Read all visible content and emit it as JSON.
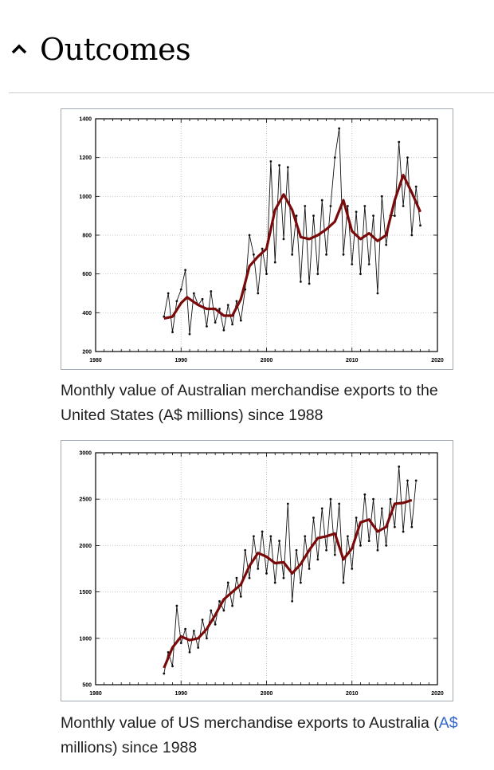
{
  "section": {
    "title": "Outcomes",
    "toggle_icon": "chevron-up-icon"
  },
  "colors": {
    "raw": "#111111",
    "trend": "#7a0a0a",
    "grid": "#c8c8c8",
    "link": "#3366cc"
  },
  "figures": [
    {
      "caption": "Monthly value of Australian merchandise exports to the United States (A$ millions) since 1988"
    },
    {
      "caption_before": "Monthly value of US merchandise exports to Australia (",
      "caption_link": "A$",
      "caption_after": " millions) since 1988"
    }
  ],
  "chart_data": [
    {
      "type": "line",
      "xlim": [
        1980,
        2020
      ],
      "ylim": [
        200,
        1400
      ],
      "xticks": [
        "1980",
        "1990",
        "2000",
        "2010",
        "2020"
      ],
      "yticks": [
        "200",
        "400",
        "600",
        "800",
        "1000",
        "1200",
        "1400"
      ],
      "grid": true,
      "series": [
        {
          "kind": "monthly",
          "x": [
            1988,
            1988.5,
            1989,
            1989.5,
            1990,
            1990.5,
            1991,
            1991.5,
            1992,
            1992.5,
            1993,
            1993.5,
            1994,
            1994.5,
            1995,
            1995.5,
            1996,
            1996.5,
            1997,
            1997.5,
            1998,
            1998.5,
            1999,
            1999.5,
            2000,
            2000.5,
            2001,
            2001.5,
            2002,
            2002.5,
            2003,
            2003.5,
            2004,
            2004.5,
            2005,
            2005.5,
            2006,
            2006.5,
            2007,
            2007.5,
            2008,
            2008.5,
            2009,
            2009.5,
            2010,
            2010.5,
            2011,
            2011.5,
            2012,
            2012.5,
            2013,
            2013.5,
            2014,
            2014.5,
            2015,
            2015.5,
            2016,
            2016.5,
            2017,
            2017.5,
            2018
          ],
          "y": [
            380,
            500,
            300,
            460,
            520,
            620,
            290,
            500,
            440,
            470,
            330,
            510,
            350,
            420,
            310,
            440,
            340,
            460,
            360,
            520,
            800,
            700,
            500,
            730,
            600,
            1180,
            660,
            1160,
            780,
            1150,
            700,
            900,
            560,
            950,
            550,
            900,
            600,
            980,
            700,
            950,
            1200,
            1350,
            700,
            950,
            650,
            920,
            600,
            950,
            650,
            900,
            500,
            1000,
            750,
            900,
            900,
            1280,
            950,
            1200,
            800,
            1050,
            850
          ]
        },
        {
          "kind": "trend",
          "x": [
            1988,
            1989,
            1990,
            1990.7,
            1992,
            1993,
            1994,
            1995,
            1996,
            1997,
            1998,
            1999,
            2000,
            2001,
            2002,
            2003,
            2004,
            2005,
            2006,
            2007,
            2008,
            2009,
            2010,
            2011,
            2012,
            2013,
            2014,
            2015,
            2016,
            2017,
            2018
          ],
          "y": [
            370,
            380,
            450,
            480,
            440,
            420,
            420,
            385,
            385,
            470,
            640,
            690,
            730,
            930,
            1010,
            930,
            790,
            780,
            800,
            830,
            870,
            980,
            820,
            780,
            810,
            770,
            800,
            980,
            1110,
            1020,
            920
          ]
        }
      ]
    },
    {
      "type": "line",
      "xlim": [
        1980,
        2020
      ],
      "ylim": [
        500,
        3000
      ],
      "xticks": [
        "1980",
        "1990",
        "2000",
        "2010",
        "2020"
      ],
      "yticks": [
        "500",
        "1000",
        "1500",
        "2000",
        "2500",
        "3000"
      ],
      "grid": true,
      "series": [
        {
          "kind": "monthly",
          "x": [
            1988,
            1988.5,
            1989,
            1989.5,
            1990,
            1990.5,
            1991,
            1991.5,
            1992,
            1992.5,
            1993,
            1993.5,
            1994,
            1994.5,
            1995,
            1995.5,
            1996,
            1996.5,
            1997,
            1997.5,
            1998,
            1998.5,
            1999,
            1999.5,
            2000,
            2000.5,
            2001,
            2001.5,
            2002,
            2002.5,
            2003,
            2003.5,
            2004,
            2004.5,
            2005,
            2005.5,
            2006,
            2006.5,
            2007,
            2007.5,
            2008,
            2008.5,
            2009,
            2009.5,
            2010,
            2010.5,
            2011,
            2011.5,
            2012,
            2012.5,
            2013,
            2013.5,
            2014,
            2014.5,
            2015,
            2015.5,
            2016,
            2016.5,
            2017,
            2017.5
          ],
          "y": [
            620,
            850,
            700,
            1350,
            950,
            1100,
            850,
            1080,
            900,
            1200,
            1000,
            1300,
            1150,
            1400,
            1300,
            1600,
            1350,
            1650,
            1450,
            1950,
            1650,
            2100,
            1750,
            2150,
            1700,
            2100,
            1600,
            2050,
            1650,
            2450,
            1400,
            1950,
            1600,
            2100,
            1750,
            2300,
            1850,
            2400,
            1950,
            2500,
            1900,
            2450,
            1600,
            2100,
            1750,
            2300,
            2000,
            2550,
            2050,
            2500,
            1950,
            2400,
            2000,
            2500,
            2200,
            2850,
            2150,
            2700,
            2200,
            2700
          ]
        },
        {
          "kind": "trend",
          "x": [
            1988,
            1989,
            1990,
            1991,
            1992,
            1993,
            1994,
            1995,
            1996,
            1997,
            1998,
            1999,
            2000,
            2001,
            2002,
            2003,
            2004,
            2005,
            2006,
            2007,
            2008,
            2009,
            2010,
            2011,
            2012,
            2013,
            2014,
            2015,
            2016,
            2017
          ],
          "y": [
            680,
            900,
            1020,
            980,
            1000,
            1100,
            1250,
            1420,
            1500,
            1580,
            1780,
            1920,
            1880,
            1810,
            1820,
            1700,
            1800,
            1950,
            2080,
            2100,
            2130,
            1850,
            1970,
            2250,
            2280,
            2150,
            2200,
            2450,
            2460,
            2490
          ]
        }
      ]
    }
  ]
}
